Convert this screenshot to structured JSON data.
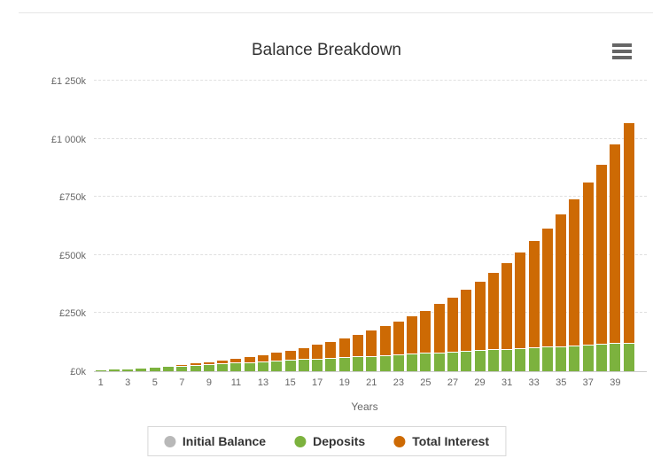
{
  "chart": {
    "title": "Balance Breakdown",
    "context_menu_icon": "hamburger-icon",
    "y_axis": {
      "tick_labels": [
        "£0k",
        "£250k",
        "£500k",
        "£750k",
        "£1 000k",
        "£1 250k"
      ],
      "tick_values": [
        0,
        250,
        500,
        750,
        1000,
        1250
      ],
      "max": 1250
    },
    "x_axis": {
      "title": "Years",
      "tick_labels": [
        "1",
        "3",
        "5",
        "7",
        "9",
        "11",
        "13",
        "15",
        "17",
        "19",
        "21",
        "23",
        "25",
        "27",
        "29",
        "31",
        "33",
        "35",
        "37",
        "39"
      ]
    },
    "legend": [
      {
        "label": "Initial Balance",
        "color": "#b8b8b8",
        "key": "initial"
      },
      {
        "label": "Deposits",
        "color": "#7cb23e",
        "key": "deposits"
      },
      {
        "label": "Total Interest",
        "color": "#cd6a04",
        "key": "interest"
      }
    ]
  },
  "chart_data": {
    "type": "bar",
    "subtype": "stacked-column",
    "title": "Balance Breakdown",
    "xlabel": "Years",
    "ylabel": "",
    "units": "thousands of pounds (£k)",
    "ylim": [
      0,
      1250
    ],
    "grid": true,
    "legend_position": "bottom",
    "categories": [
      1,
      2,
      3,
      4,
      5,
      6,
      7,
      8,
      9,
      10,
      11,
      12,
      13,
      14,
      15,
      16,
      17,
      18,
      19,
      20,
      21,
      22,
      23,
      24,
      25,
      26,
      27,
      28,
      29,
      30,
      31,
      32,
      33,
      34,
      35,
      36,
      37,
      38,
      39,
      40
    ],
    "series": [
      {
        "name": "Initial Balance",
        "color": "#b8b8b8",
        "values": [
          0,
          0,
          0,
          0,
          0,
          0,
          0,
          0,
          0,
          0,
          0,
          0,
          0,
          0,
          0,
          0,
          0,
          0,
          0,
          0,
          0,
          0,
          0,
          0,
          0,
          0,
          0,
          0,
          0,
          0,
          0,
          0,
          0,
          0,
          0,
          0,
          0,
          0,
          0,
          0
        ]
      },
      {
        "name": "Deposits",
        "color": "#7cb23e",
        "values": [
          3,
          6,
          9,
          12,
          15,
          18,
          21,
          24,
          27,
          30,
          33,
          36,
          39,
          42,
          45,
          48,
          51,
          54,
          57,
          60,
          63,
          66,
          69,
          72,
          75,
          78,
          81,
          84,
          87,
          90,
          93,
          96,
          99,
          102,
          105,
          108,
          111,
          114,
          117,
          120
        ]
      },
      {
        "name": "Total Interest",
        "color": "#cd6a04",
        "values": [
          0,
          0.3,
          0.9,
          1.8,
          3.0,
          4.7,
          6.8,
          9.3,
          12.4,
          16.0,
          20.2,
          25.1,
          30.8,
          37.2,
          44.5,
          52.7,
          62.0,
          72.4,
          84.0,
          97.0,
          111.4,
          127.5,
          145.3,
          165.0,
          186.8,
          210.8,
          237.4,
          266.7,
          299.0,
          334.5,
          373.5,
          416.5,
          463.6,
          515.4,
          572.2,
          634.5,
          702.8,
          777.7,
          859.9,
          949.8
        ]
      }
    ]
  }
}
